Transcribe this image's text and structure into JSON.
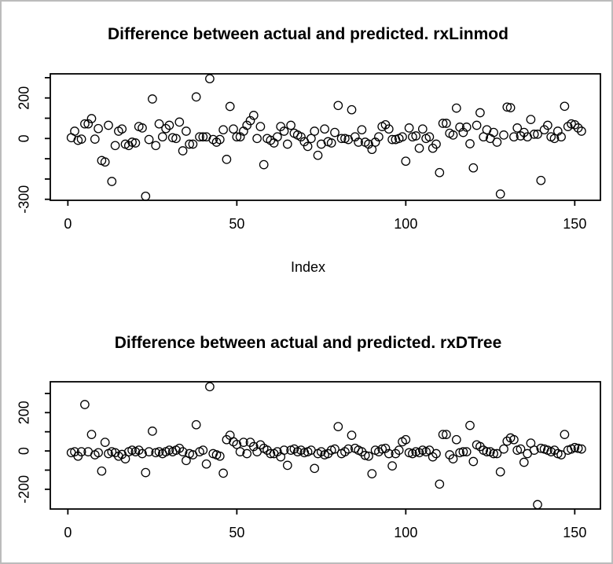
{
  "window": {
    "background_color": "#ffffff",
    "frame_color": "#bcbcbc",
    "plot_line_color": "#000000"
  },
  "chart_data": [
    {
      "type": "scatter",
      "title": "Difference between actual and predicted. rxLinmod",
      "xlabel": "Index",
      "ylabel": "",
      "marker": "open-circle",
      "legend": "none",
      "grid": false,
      "xlim": [
        -5.2,
        157.6
      ],
      "ylim": [
        -305,
        319
      ],
      "x_ticks": [
        0,
        50,
        100,
        150
      ],
      "y_ticks": [
        -300,
        -200,
        -100,
        0,
        100,
        200,
        300
      ],
      "y_labeled_ticks": [
        -300,
        0,
        200
      ],
      "points": [
        [
          1,
          4
        ],
        [
          2,
          36
        ],
        [
          3,
          -9
        ],
        [
          4,
          -3
        ],
        [
          5,
          72
        ],
        [
          6,
          72
        ],
        [
          7,
          98
        ],
        [
          8,
          -3
        ],
        [
          9,
          49
        ],
        [
          10,
          -109
        ],
        [
          11,
          -116
        ],
        [
          12,
          65
        ],
        [
          13,
          -212
        ],
        [
          14,
          -35
        ],
        [
          15,
          36
        ],
        [
          16,
          47
        ],
        [
          17,
          -28
        ],
        [
          18,
          -35
        ],
        [
          19,
          -18
        ],
        [
          20,
          -22
        ],
        [
          21,
          59
        ],
        [
          22,
          52
        ],
        [
          23,
          -285
        ],
        [
          24,
          -5
        ],
        [
          25,
          195
        ],
        [
          26,
          -35
        ],
        [
          27,
          72
        ],
        [
          28,
          8
        ],
        [
          29,
          49
        ],
        [
          30,
          65
        ],
        [
          31,
          4
        ],
        [
          32,
          0
        ],
        [
          33,
          81
        ],
        [
          34,
          -61
        ],
        [
          35,
          36
        ],
        [
          36,
          -28
        ],
        [
          37,
          -28
        ],
        [
          38,
          205
        ],
        [
          39,
          8
        ],
        [
          40,
          8
        ],
        [
          41,
          8
        ],
        [
          42,
          295
        ],
        [
          43,
          -5
        ],
        [
          44,
          -18
        ],
        [
          45,
          -5
        ],
        [
          46,
          43
        ],
        [
          47,
          -103
        ],
        [
          48,
          158
        ],
        [
          49,
          47
        ],
        [
          50,
          8
        ],
        [
          51,
          8
        ],
        [
          52,
          36
        ],
        [
          53,
          65
        ],
        [
          54,
          88
        ],
        [
          55,
          114
        ],
        [
          56,
          0
        ],
        [
          57,
          59
        ],
        [
          58,
          -129
        ],
        [
          59,
          0
        ],
        [
          60,
          -9
        ],
        [
          61,
          -22
        ],
        [
          62,
          8
        ],
        [
          63,
          59
        ],
        [
          64,
          36
        ],
        [
          65,
          -28
        ],
        [
          66,
          65
        ],
        [
          67,
          26
        ],
        [
          68,
          17
        ],
        [
          69,
          8
        ],
        [
          70,
          -16
        ],
        [
          71,
          -39
        ],
        [
          72,
          0
        ],
        [
          73,
          36
        ],
        [
          74,
          -83
        ],
        [
          75,
          -28
        ],
        [
          76,
          47
        ],
        [
          77,
          -16
        ],
        [
          78,
          -22
        ],
        [
          79,
          30
        ],
        [
          80,
          163
        ],
        [
          81,
          0
        ],
        [
          82,
          0
        ],
        [
          83,
          -5
        ],
        [
          84,
          142
        ],
        [
          85,
          8
        ],
        [
          86,
          -18
        ],
        [
          87,
          43
        ],
        [
          88,
          -18
        ],
        [
          89,
          -28
        ],
        [
          90,
          -54
        ],
        [
          91,
          -18
        ],
        [
          92,
          8
        ],
        [
          93,
          59
        ],
        [
          94,
          68
        ],
        [
          95,
          47
        ],
        [
          96,
          -5
        ],
        [
          97,
          -5
        ],
        [
          98,
          0
        ],
        [
          99,
          8
        ],
        [
          100,
          -112
        ],
        [
          101,
          52
        ],
        [
          102,
          8
        ],
        [
          103,
          13
        ],
        [
          104,
          -48
        ],
        [
          105,
          47
        ],
        [
          106,
          0
        ],
        [
          107,
          8
        ],
        [
          108,
          -48
        ],
        [
          109,
          -28
        ],
        [
          110,
          -168
        ],
        [
          111,
          75
        ],
        [
          112,
          75
        ],
        [
          113,
          26
        ],
        [
          114,
          17
        ],
        [
          115,
          150
        ],
        [
          116,
          56
        ],
        [
          117,
          30
        ],
        [
          118,
          56
        ],
        [
          119,
          -26
        ],
        [
          120,
          -145
        ],
        [
          121,
          65
        ],
        [
          122,
          127
        ],
        [
          123,
          8
        ],
        [
          124,
          43
        ],
        [
          125,
          0
        ],
        [
          126,
          30
        ],
        [
          127,
          -18
        ],
        [
          128,
          -274
        ],
        [
          129,
          17
        ],
        [
          130,
          155
        ],
        [
          131,
          152
        ],
        [
          132,
          8
        ],
        [
          133,
          52
        ],
        [
          134,
          13
        ],
        [
          135,
          30
        ],
        [
          136,
          8
        ],
        [
          137,
          94
        ],
        [
          138,
          21
        ],
        [
          139,
          21
        ],
        [
          140,
          -207
        ],
        [
          141,
          43
        ],
        [
          142,
          65
        ],
        [
          143,
          8
        ],
        [
          144,
          0
        ],
        [
          145,
          36
        ],
        [
          146,
          8
        ],
        [
          147,
          159
        ],
        [
          148,
          59
        ],
        [
          149,
          72
        ],
        [
          150,
          68
        ],
        [
          151,
          52
        ],
        [
          152,
          36
        ]
      ]
    },
    {
      "type": "scatter",
      "title": "Difference between actual and predicted. rxDTree",
      "xlabel": "",
      "ylabel": "",
      "marker": "open-circle",
      "legend": "none",
      "grid": false,
      "xlim": [
        -5.2,
        157.6
      ],
      "ylim": [
        -303,
        361
      ],
      "x_ticks": [
        0,
        50,
        100,
        150
      ],
      "y_ticks": [
        -200,
        -100,
        0,
        100,
        200,
        300
      ],
      "y_labeled_ticks": [
        -200,
        0,
        200
      ],
      "points": [
        [
          1,
          -9
        ],
        [
          2,
          -4
        ],
        [
          3,
          -27
        ],
        [
          4,
          -4
        ],
        [
          5,
          242
        ],
        [
          6,
          -4
        ],
        [
          7,
          86
        ],
        [
          8,
          -20
        ],
        [
          9,
          -9
        ],
        [
          10,
          -105
        ],
        [
          11,
          45
        ],
        [
          12,
          -14
        ],
        [
          13,
          -4
        ],
        [
          14,
          -9
        ],
        [
          15,
          -27
        ],
        [
          16,
          -18
        ],
        [
          17,
          -41
        ],
        [
          18,
          -4
        ],
        [
          19,
          4
        ],
        [
          20,
          -4
        ],
        [
          21,
          4
        ],
        [
          22,
          -14
        ],
        [
          23,
          -113
        ],
        [
          24,
          -4
        ],
        [
          25,
          103
        ],
        [
          26,
          -9
        ],
        [
          27,
          -4
        ],
        [
          28,
          -14
        ],
        [
          29,
          -4
        ],
        [
          30,
          4
        ],
        [
          31,
          -4
        ],
        [
          32,
          4
        ],
        [
          33,
          14
        ],
        [
          34,
          -4
        ],
        [
          35,
          -50
        ],
        [
          36,
          -14
        ],
        [
          37,
          -20
        ],
        [
          38,
          137
        ],
        [
          39,
          -4
        ],
        [
          40,
          4
        ],
        [
          41,
          -68
        ],
        [
          42,
          335
        ],
        [
          43,
          -14
        ],
        [
          44,
          -20
        ],
        [
          45,
          -27
        ],
        [
          46,
          -116
        ],
        [
          47,
          59
        ],
        [
          48,
          82
        ],
        [
          49,
          48
        ],
        [
          50,
          34
        ],
        [
          51,
          -4
        ],
        [
          52,
          45
        ],
        [
          53,
          -14
        ],
        [
          54,
          45
        ],
        [
          55,
          23
        ],
        [
          56,
          -4
        ],
        [
          57,
          32
        ],
        [
          58,
          14
        ],
        [
          59,
          4
        ],
        [
          60,
          -14
        ],
        [
          61,
          -14
        ],
        [
          62,
          -4
        ],
        [
          63,
          -31
        ],
        [
          64,
          4
        ],
        [
          65,
          -75
        ],
        [
          66,
          4
        ],
        [
          67,
          10
        ],
        [
          68,
          -4
        ],
        [
          69,
          4
        ],
        [
          70,
          -9
        ],
        [
          71,
          -4
        ],
        [
          72,
          4
        ],
        [
          73,
          -91
        ],
        [
          74,
          -14
        ],
        [
          75,
          -4
        ],
        [
          76,
          -20
        ],
        [
          77,
          -14
        ],
        [
          78,
          4
        ],
        [
          79,
          10
        ],
        [
          80,
          127
        ],
        [
          81,
          -14
        ],
        [
          82,
          -4
        ],
        [
          83,
          10
        ],
        [
          84,
          82
        ],
        [
          85,
          14
        ],
        [
          86,
          4
        ],
        [
          87,
          -4
        ],
        [
          88,
          -23
        ],
        [
          89,
          -27
        ],
        [
          90,
          -119
        ],
        [
          91,
          4
        ],
        [
          92,
          -4
        ],
        [
          93,
          10
        ],
        [
          94,
          14
        ],
        [
          95,
          -14
        ],
        [
          96,
          -78
        ],
        [
          97,
          -14
        ],
        [
          98,
          4
        ],
        [
          99,
          48
        ],
        [
          100,
          59
        ],
        [
          101,
          -9
        ],
        [
          102,
          -14
        ],
        [
          103,
          -4
        ],
        [
          104,
          -9
        ],
        [
          105,
          4
        ],
        [
          106,
          -4
        ],
        [
          107,
          4
        ],
        [
          108,
          -31
        ],
        [
          109,
          -14
        ],
        [
          110,
          -173
        ],
        [
          111,
          86
        ],
        [
          112,
          86
        ],
        [
          113,
          -20
        ],
        [
          114,
          -41
        ],
        [
          115,
          59
        ],
        [
          116,
          -9
        ],
        [
          117,
          -4
        ],
        [
          118,
          -4
        ],
        [
          119,
          133
        ],
        [
          120,
          -55
        ],
        [
          121,
          32
        ],
        [
          122,
          23
        ],
        [
          123,
          4
        ],
        [
          124,
          -4
        ],
        [
          125,
          -4
        ],
        [
          126,
          -14
        ],
        [
          127,
          -14
        ],
        [
          128,
          -109
        ],
        [
          129,
          10
        ],
        [
          130,
          51
        ],
        [
          131,
          68
        ],
        [
          132,
          59
        ],
        [
          133,
          4
        ],
        [
          134,
          10
        ],
        [
          135,
          -59
        ],
        [
          136,
          -14
        ],
        [
          137,
          41
        ],
        [
          138,
          4
        ],
        [
          139,
          -280
        ],
        [
          140,
          14
        ],
        [
          141,
          10
        ],
        [
          142,
          4
        ],
        [
          143,
          -4
        ],
        [
          144,
          4
        ],
        [
          145,
          -14
        ],
        [
          146,
          -20
        ],
        [
          147,
          86
        ],
        [
          148,
          4
        ],
        [
          149,
          10
        ],
        [
          150,
          18
        ],
        [
          151,
          14
        ],
        [
          152,
          10
        ]
      ]
    }
  ]
}
